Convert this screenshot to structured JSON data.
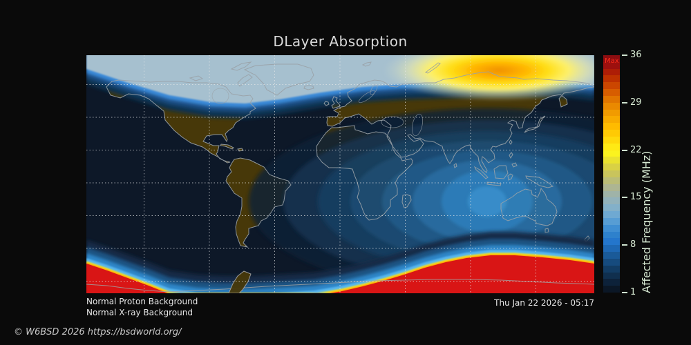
{
  "title": "DLayer Absorption",
  "status": {
    "line1": "Normal Proton Background",
    "line2": "Normal X-ray Background"
  },
  "timestamp": "Thu Jan 22 2026 - 05:17",
  "footer": "© W6BSD 2026 https://bsdworld.org/",
  "colorbar": {
    "max_label": "Max",
    "axis_label": "Affected Frequency (MHz)",
    "ticks": [
      36,
      29,
      22,
      15,
      8,
      1
    ],
    "range_mhz": [
      1,
      36
    ],
    "segment_colors_bottom_to_top": [
      "#0b1726",
      "#0d223a",
      "#102f4e",
      "#123c64",
      "#164b7e",
      "#1a5a98",
      "#1e68b4",
      "#2476cc",
      "#2e81cc",
      "#3f8ed2",
      "#579dd4",
      "#6fa9d2",
      "#83b0c9",
      "#92b2bb",
      "#9fb3a8",
      "#adb592",
      "#babc77",
      "#c9c45c",
      "#d9d144",
      "#eae22f",
      "#fbf31f",
      "#ffe914",
      "#ffd90b",
      "#ffca04",
      "#ffbb00",
      "#f8ab00",
      "#f19b00",
      "#ea8900",
      "#e17500",
      "#d75d00",
      "#cb4600",
      "#bd3100",
      "#ad1d06",
      "#9d100e",
      "#8c0d10"
    ]
  },
  "map_colors": {
    "background": "#0a0a0a",
    "night_ocean": "#0d1828",
    "night_land": "#473809",
    "coastline": "#9aa2a8",
    "polar_day_band": "#a6c0cf",
    "terminator_glow": "#3b8ad8",
    "day_ring_brightest": "#3b94d4",
    "aurora_core_orange": "#f09000",
    "aurora_yellow": "#ffdd15",
    "south_cap_red": "#d91515",
    "south_cap_yellow": "#ffe816",
    "south_cap_cyan": "#57b6f0",
    "gridline": "#e8e8e8"
  }
}
